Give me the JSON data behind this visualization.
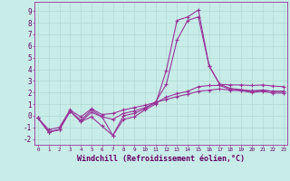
{
  "background_color": "#c8ece8",
  "grid_color": "#b0d8d0",
  "line_color": "#993399",
  "xlabel": "Windchill (Refroidissement éolien,°C)",
  "xlabel_fontsize": 6.0,
  "ytick_labels": [
    "-2",
    "-1",
    "0",
    "1",
    "2",
    "3",
    "4",
    "5",
    "6",
    "7",
    "8",
    "9"
  ],
  "ytick_values": [
    -2,
    -1,
    0,
    1,
    2,
    3,
    4,
    5,
    6,
    7,
    8,
    9
  ],
  "xmin": 0,
  "xmax": 23,
  "ymin": -2.5,
  "ymax": 9.8,
  "lines": [
    {
      "x": [
        0,
        1,
        2,
        3,
        4,
        5,
        6,
        7,
        8,
        9,
        10,
        11,
        12,
        13,
        14,
        15,
        16,
        17,
        18,
        19,
        20,
        21,
        22,
        23
      ],
      "y": [
        -0.2,
        -1.4,
        -1.2,
        0.4,
        -0.5,
        -0.1,
        -0.9,
        -1.7,
        -0.3,
        -0.1,
        0.5,
        1.0,
        3.9,
        8.2,
        8.5,
        9.1,
        4.3,
        2.7,
        2.65,
        2.65,
        2.6,
        2.65,
        2.55,
        2.5
      ]
    },
    {
      "x": [
        0,
        1,
        2,
        3,
        4,
        5,
        6,
        7,
        8,
        9,
        10,
        11,
        12,
        13,
        14,
        15,
        16,
        17,
        18,
        19,
        20,
        21,
        22,
        23
      ],
      "y": [
        -0.2,
        -1.4,
        -1.2,
        0.4,
        -0.5,
        0.3,
        -0.1,
        -1.7,
        0.0,
        0.2,
        0.6,
        1.2,
        2.7,
        6.5,
        8.2,
        8.5,
        4.3,
        2.7,
        2.35,
        2.25,
        2.15,
        2.2,
        2.1,
        2.1
      ]
    },
    {
      "x": [
        0,
        1,
        2,
        3,
        4,
        5,
        6,
        7,
        8,
        9,
        10,
        11,
        12,
        13,
        14,
        15,
        16,
        17,
        18,
        19,
        20,
        21,
        22,
        23
      ],
      "y": [
        -0.2,
        -1.4,
        -1.2,
        0.4,
        -0.4,
        0.5,
        -0.1,
        -0.3,
        0.2,
        0.4,
        0.7,
        1.1,
        1.6,
        1.9,
        2.1,
        2.5,
        2.6,
        2.6,
        2.25,
        2.2,
        2.1,
        2.2,
        2.1,
        2.1
      ]
    },
    {
      "x": [
        0,
        1,
        2,
        3,
        4,
        5,
        6,
        7,
        8,
        9,
        10,
        11,
        12,
        13,
        14,
        15,
        16,
        17,
        18,
        19,
        20,
        21,
        22,
        23
      ],
      "y": [
        -0.2,
        -1.2,
        -1.0,
        0.5,
        -0.1,
        0.6,
        0.1,
        0.2,
        0.5,
        0.7,
        0.9,
        1.15,
        1.4,
        1.65,
        1.85,
        2.1,
        2.2,
        2.3,
        2.2,
        2.15,
        2.0,
        2.1,
        1.95,
        1.95
      ]
    }
  ]
}
